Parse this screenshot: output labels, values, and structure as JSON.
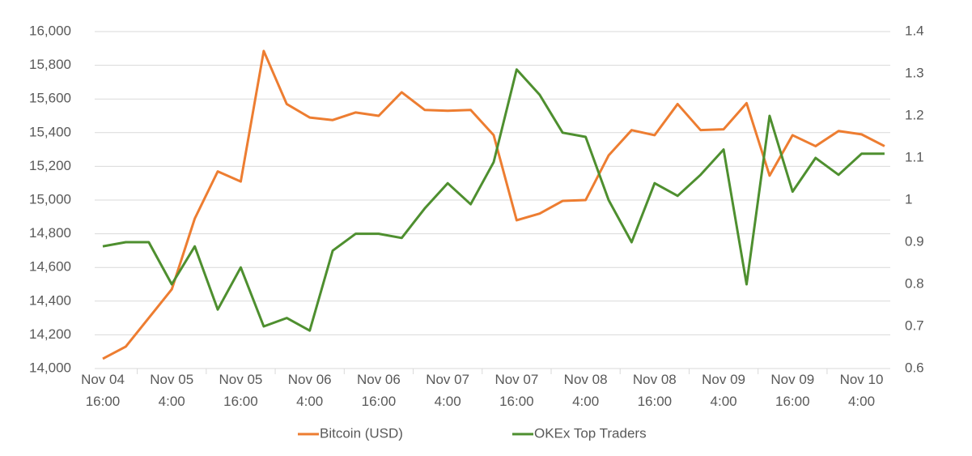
{
  "chart_data": {
    "type": "line",
    "categories": [
      "Nov 04 16:00",
      null,
      null,
      "Nov 05 4:00",
      null,
      null,
      "Nov 05 16:00",
      null,
      null,
      "Nov 06 4:00",
      null,
      null,
      "Nov 06 16:00",
      null,
      null,
      "Nov 07 4:00",
      null,
      null,
      "Nov 07 16:00",
      null,
      null,
      "Nov 08 4:00",
      null,
      null,
      "Nov 08 16:00",
      null,
      null,
      "Nov 09 4:00",
      null,
      null,
      "Nov 09 16:00",
      null,
      null,
      "Nov 10 4:00",
      null
    ],
    "series": [
      {
        "name": "Bitcoin (USD)",
        "color": "#ed7d31",
        "values": [
          14058,
          14130,
          14300,
          14470,
          14890,
          15170,
          15110,
          15885,
          15570,
          15490,
          15475,
          15520,
          15500,
          15640,
          15535,
          15530,
          15535,
          15385,
          14880,
          14920,
          14995,
          15000,
          15265,
          15415,
          15385,
          15570,
          15415,
          15420,
          15575,
          15145,
          15385,
          15320,
          15410,
          15390,
          15320
        ]
      },
      {
        "name": "OKEx Top Traders",
        "color": "#4e8f2f",
        "axis": "y2",
        "values": [
          0.89,
          0.9,
          0.9,
          0.8,
          0.89,
          0.74,
          0.84,
          0.7,
          0.72,
          0.69,
          0.88,
          0.92,
          0.92,
          0.91,
          0.98,
          1.04,
          0.99,
          1.09,
          1.31,
          1.25,
          1.16,
          1.15,
          1.0,
          0.9,
          1.04,
          1.01,
          1.06,
          1.12,
          0.8,
          1.2,
          1.02,
          1.1,
          1.06,
          1.11,
          1.11
        ]
      }
    ],
    "ylim": [
      14000,
      16000
    ],
    "yticks": [
      {
        "value": 14000,
        "label": "14,000"
      },
      {
        "value": 14200,
        "label": "14,200"
      },
      {
        "value": 14400,
        "label": "14,400"
      },
      {
        "value": 14600,
        "label": "14,600"
      },
      {
        "value": 14800,
        "label": "14,800"
      },
      {
        "value": 15000,
        "label": "15,000"
      },
      {
        "value": 15200,
        "label": "15,200"
      },
      {
        "value": 15400,
        "label": "15,400"
      },
      {
        "value": 15600,
        "label": "15,600"
      },
      {
        "value": 15800,
        "label": "15,800"
      },
      {
        "value": 16000,
        "label": "16,000"
      }
    ],
    "y2lim": [
      0.6,
      1.4
    ],
    "y2ticks": [
      0.6,
      0.7,
      0.8,
      0.9,
      1,
      1.1,
      1.2,
      1.3,
      1.4
    ],
    "grid": true,
    "legend": "bottom"
  }
}
